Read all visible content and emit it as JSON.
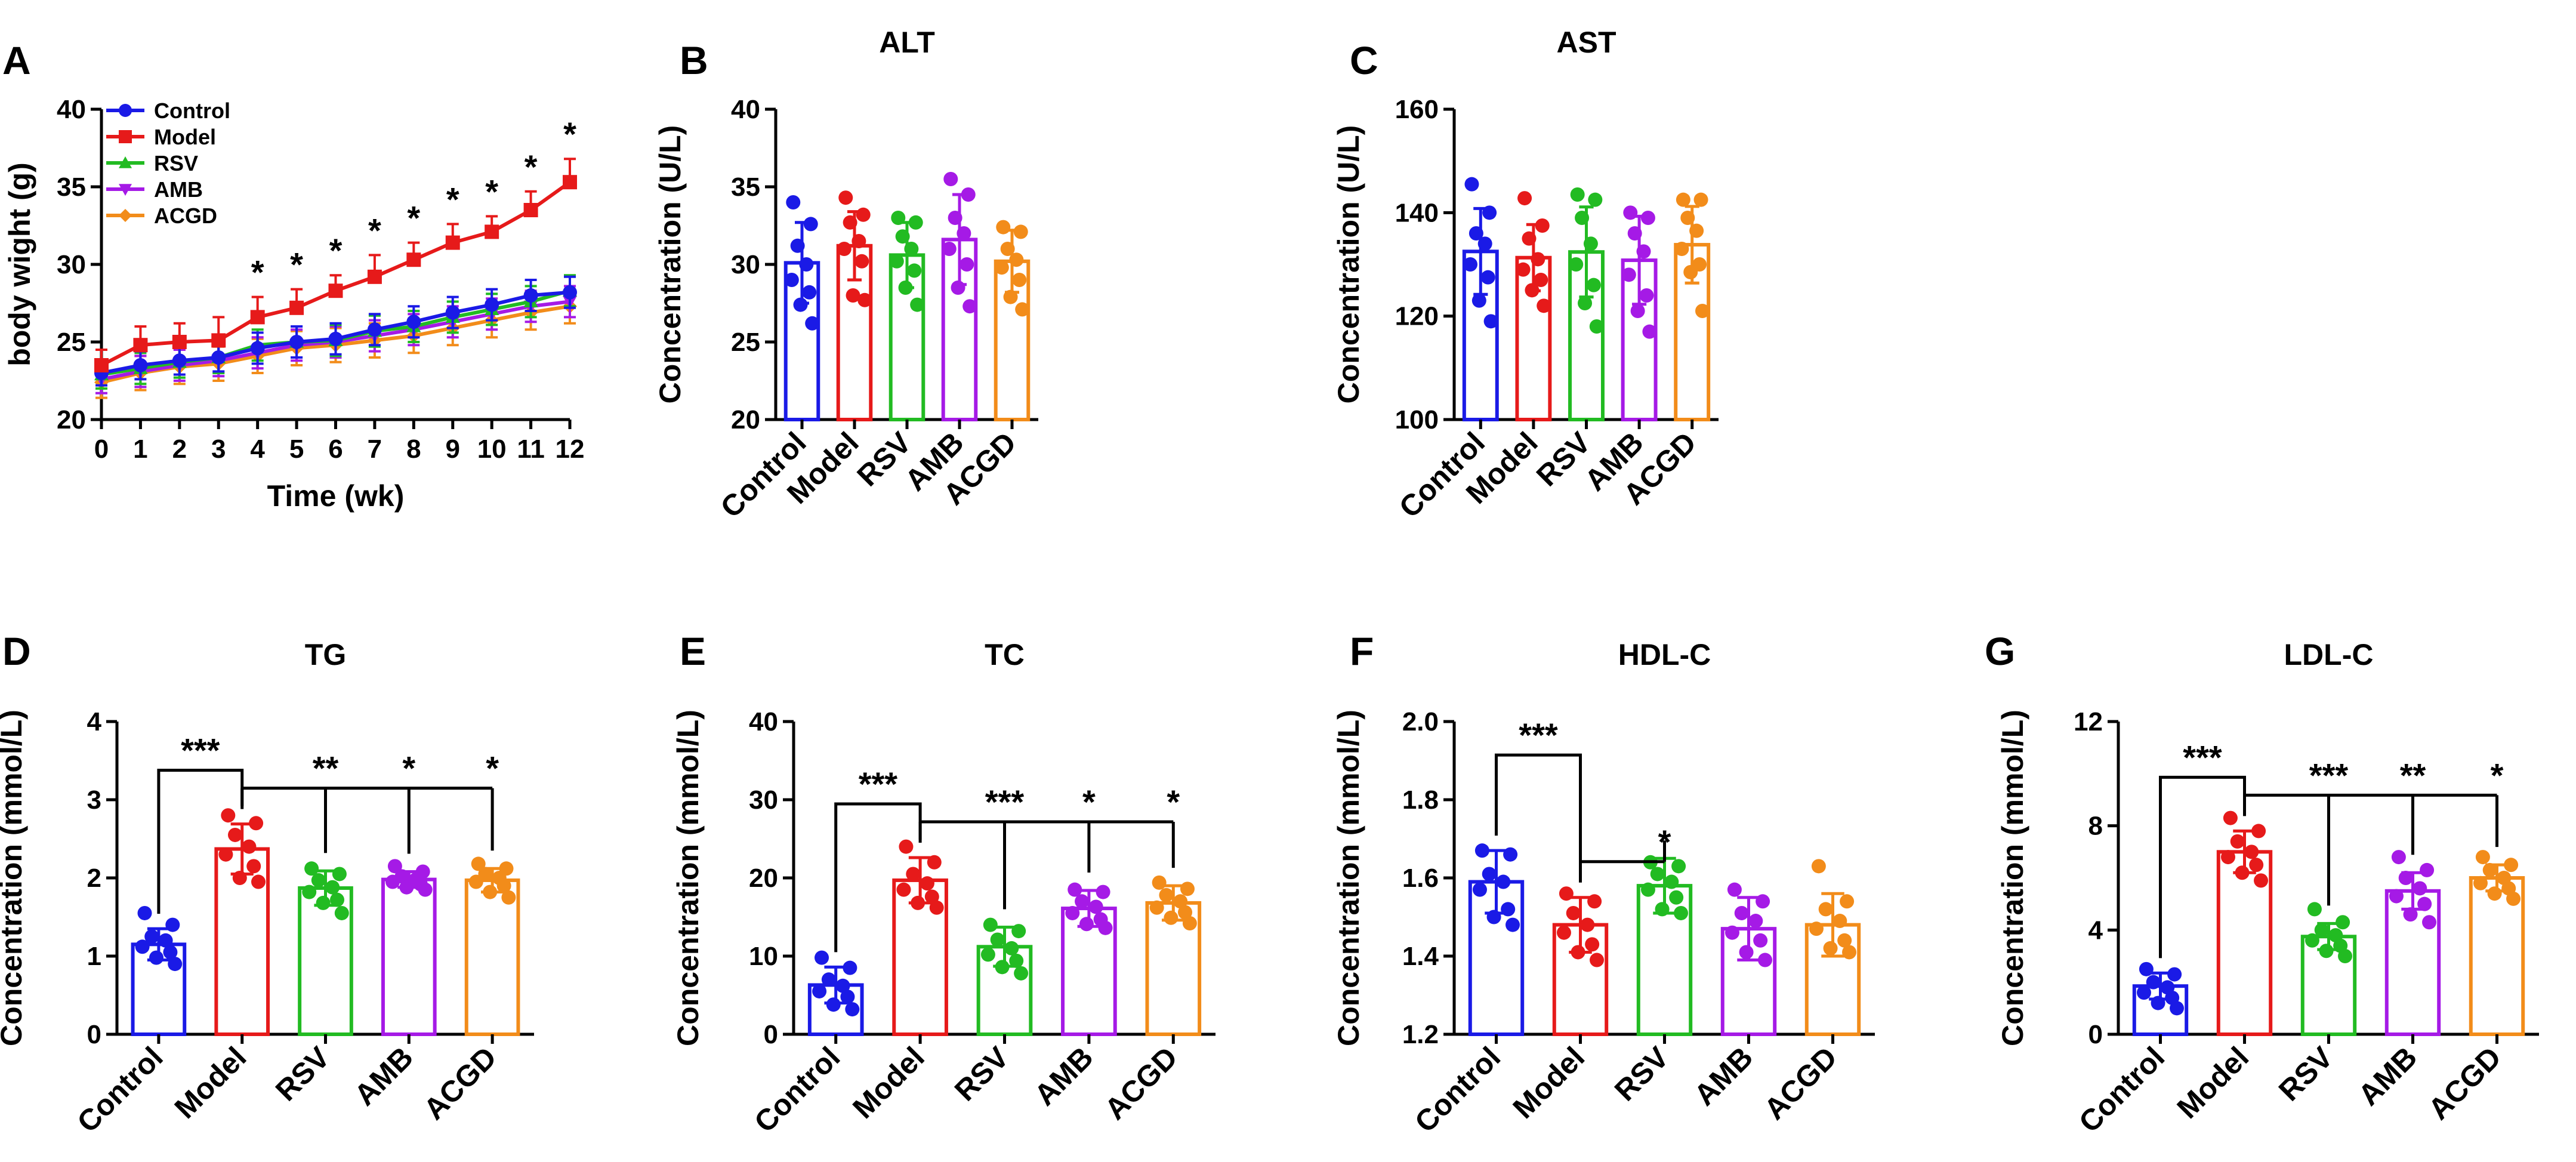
{
  "palette": {
    "Control": "#1a1ae6",
    "Model": "#e61a1a",
    "RSV": "#22bb22",
    "AMB": "#a51ae6",
    "ACGD": "#f28c1a"
  },
  "chart_data": [
    {
      "panel": "A",
      "type": "line",
      "title": "",
      "xlabel": "Time (wk)",
      "ylabel": "body wight (g)",
      "x": [
        0,
        1,
        2,
        3,
        4,
        5,
        6,
        7,
        8,
        9,
        10,
        11,
        12
      ],
      "xlim": [
        0,
        12
      ],
      "ylim": [
        20,
        40
      ],
      "yticks": [
        20,
        25,
        30,
        35,
        40
      ],
      "legend_position": "top-left",
      "series": [
        {
          "name": "Control",
          "marker": "circle",
          "values": [
            23.0,
            23.5,
            23.8,
            24.0,
            24.6,
            25.0,
            25.2,
            25.8,
            26.3,
            26.9,
            27.4,
            28.0,
            28.2
          ],
          "errors": [
            0.8,
            0.9,
            0.9,
            0.9,
            1.0,
            1.0,
            1.0,
            1.0,
            1.0,
            1.0,
            1.0,
            1.0,
            1.0
          ]
        },
        {
          "name": "Model",
          "marker": "square",
          "values": [
            23.5,
            24.8,
            25.0,
            25.1,
            26.6,
            27.2,
            28.3,
            29.2,
            30.3,
            31.4,
            32.1,
            33.5,
            35.3
          ],
          "errors": [
            1.0,
            1.2,
            1.2,
            1.5,
            1.3,
            1.2,
            1.0,
            1.4,
            1.1,
            1.2,
            1.0,
            1.2,
            1.5
          ]
        },
        {
          "name": "RSV",
          "marker": "triangle-up",
          "values": [
            22.9,
            23.3,
            23.7,
            24.0,
            24.8,
            25.0,
            25.1,
            25.7,
            26.0,
            26.6,
            27.1,
            27.6,
            28.3
          ],
          "errors": [
            0.9,
            1.0,
            1.0,
            1.0,
            1.0,
            1.0,
            1.0,
            1.0,
            1.0,
            1.0,
            1.0,
            1.0,
            1.0
          ]
        },
        {
          "name": "AMB",
          "marker": "triangle-down",
          "values": [
            22.6,
            23.1,
            23.5,
            23.8,
            24.3,
            24.8,
            25.0,
            25.4,
            25.8,
            26.3,
            26.8,
            27.3,
            27.6
          ],
          "errors": [
            0.9,
            1.0,
            1.0,
            1.0,
            1.0,
            1.0,
            1.0,
            1.0,
            1.0,
            1.0,
            1.0,
            1.0,
            1.0
          ]
        },
        {
          "name": "ACGD",
          "marker": "diamond",
          "values": [
            22.4,
            23.0,
            23.4,
            23.6,
            24.1,
            24.6,
            24.8,
            25.1,
            25.4,
            25.9,
            26.4,
            26.9,
            27.3
          ],
          "errors": [
            1.0,
            1.1,
            1.1,
            1.1,
            1.1,
            1.1,
            1.1,
            1.1,
            1.1,
            1.1,
            1.1,
            1.1,
            1.1
          ]
        }
      ],
      "significance": [
        {
          "x": 4,
          "label": "*"
        },
        {
          "x": 5,
          "label": "*"
        },
        {
          "x": 6,
          "label": "*"
        },
        {
          "x": 7,
          "label": "*"
        },
        {
          "x": 8,
          "label": "*"
        },
        {
          "x": 9,
          "label": "*"
        },
        {
          "x": 10,
          "label": "*"
        },
        {
          "x": 11,
          "label": "*"
        },
        {
          "x": 12,
          "label": "*"
        }
      ]
    },
    {
      "panel": "B",
      "type": "bar",
      "title": "ALT",
      "xlabel": "",
      "ylabel": "Concentration (U/L)",
      "ylim": [
        20,
        40
      ],
      "yticks": [
        20,
        25,
        30,
        35,
        40
      ],
      "categories": [
        "Control",
        "Model",
        "RSV",
        "AMB",
        "ACGD"
      ],
      "values": [
        30.1,
        31.2,
        30.6,
        31.6,
        30.2
      ],
      "errors": [
        2.6,
        2.2,
        2.1,
        2.9,
        2.0
      ],
      "points": [
        [
          34.0,
          32.6,
          31.2,
          30.0,
          29.0,
          28.2,
          27.4,
          26.2
        ],
        [
          34.3,
          33.2,
          32.7,
          31.5,
          31.0,
          30.2,
          28.0,
          27.7
        ],
        [
          33.0,
          32.7,
          31.8,
          31.0,
          30.2,
          29.6,
          28.5,
          27.4
        ],
        [
          35.5,
          34.5,
          33.0,
          32.0,
          31.0,
          30.0,
          28.5,
          27.3
        ],
        [
          32.4,
          32.1,
          31.0,
          30.3,
          29.8,
          29.0,
          27.9,
          27.1
        ]
      ],
      "significance": []
    },
    {
      "panel": "C",
      "type": "bar",
      "title": "AST",
      "xlabel": "",
      "ylabel": "Concentration (U/L)",
      "ylim": [
        100,
        160
      ],
      "yticks": [
        100,
        120,
        140,
        160
      ],
      "categories": [
        "Control",
        "Model",
        "RSV",
        "AMB",
        "ACGD"
      ],
      "values": [
        132.5,
        131.3,
        132.4,
        130.8,
        133.8
      ],
      "errors": [
        8.3,
        6.4,
        8.7,
        8.5,
        7.4
      ],
      "points": [
        [
          145.5,
          140.0,
          136.0,
          134.0,
          130.0,
          127.5,
          123.0,
          119.0
        ],
        [
          142.8,
          137.5,
          135.0,
          131.0,
          129.0,
          127.0,
          125.0,
          122.0
        ],
        [
          143.5,
          142.5,
          139.0,
          134.0,
          130.0,
          126.0,
          122.5,
          118.0
        ],
        [
          140.0,
          139.0,
          136.0,
          132.5,
          128.0,
          124.0,
          121.0,
          117.0
        ],
        [
          142.5,
          142.5,
          139.0,
          136.5,
          133.0,
          130.0,
          128.5,
          121.0
        ]
      ],
      "significance": []
    },
    {
      "panel": "D",
      "type": "bar",
      "title": "TG",
      "xlabel": "",
      "ylabel": "Concentration (mmol/L)",
      "ylim": [
        0,
        4
      ],
      "yticks": [
        0,
        1,
        2,
        3,
        4
      ],
      "categories": [
        "Control",
        "Model",
        "RSV",
        "AMB",
        "ACGD"
      ],
      "values": [
        1.15,
        2.37,
        1.87,
        1.98,
        1.97
      ],
      "errors": [
        0.2,
        0.32,
        0.22,
        0.1,
        0.15
      ],
      "points": [
        [
          1.55,
          1.4,
          1.25,
          1.2,
          1.12,
          1.05,
          0.98,
          0.9
        ],
        [
          2.8,
          2.7,
          2.55,
          2.4,
          2.3,
          2.15,
          2.0,
          1.95
        ],
        [
          2.12,
          2.05,
          1.97,
          1.88,
          1.82,
          1.72,
          1.68,
          1.55
        ],
        [
          2.15,
          2.08,
          2.02,
          1.98,
          1.95,
          1.92,
          1.88,
          1.85
        ],
        [
          2.18,
          2.12,
          2.05,
          2.0,
          1.95,
          1.9,
          1.82,
          1.75
        ]
      ],
      "significance": [
        {
          "type": "bracket",
          "from": 0,
          "to": 1,
          "label": "***"
        },
        {
          "type": "comb",
          "anchor": 1,
          "targets": [
            2,
            3,
            4
          ],
          "labels": [
            "**",
            "*",
            "*"
          ]
        }
      ]
    },
    {
      "panel": "E",
      "type": "bar",
      "title": "TC",
      "xlabel": "",
      "ylabel": "Concentration (mmol/L)",
      "ylim": [
        0,
        40
      ],
      "yticks": [
        0,
        10,
        20,
        30,
        40
      ],
      "categories": [
        "Control",
        "Model",
        "RSV",
        "AMB",
        "ACGD"
      ],
      "values": [
        6.3,
        19.7,
        11.2,
        16.1,
        16.8
      ],
      "errors": [
        2.3,
        2.9,
        2.5,
        2.3,
        2.2
      ],
      "points": [
        [
          9.8,
          8.5,
          7.0,
          6.2,
          5.5,
          4.8,
          3.8,
          3.2
        ],
        [
          24.0,
          22.0,
          20.5,
          19.3,
          18.5,
          17.6,
          16.8,
          16.2
        ],
        [
          14.0,
          13.2,
          12.1,
          11.0,
          10.2,
          9.4,
          8.6,
          7.8
        ],
        [
          18.5,
          18.2,
          17.0,
          16.3,
          15.5,
          14.7,
          14.1,
          13.6
        ],
        [
          19.4,
          18.6,
          17.8,
          17.0,
          16.2,
          15.6,
          14.9,
          14.2
        ]
      ],
      "significance": [
        {
          "type": "bracket",
          "from": 0,
          "to": 1,
          "label": "***"
        },
        {
          "type": "comb",
          "anchor": 1,
          "targets": [
            2,
            3,
            4
          ],
          "labels": [
            "***",
            "*",
            "*"
          ]
        }
      ]
    },
    {
      "panel": "F",
      "type": "bar",
      "title": "HDL-C",
      "xlabel": "",
      "ylabel": "Concentration (mmol/L)",
      "ylim": [
        1.2,
        2.0
      ],
      "yticks": [
        1.2,
        1.4,
        1.6,
        1.8,
        2.0
      ],
      "categories": [
        "Control",
        "Model",
        "RSV",
        "AMB",
        "ACGD"
      ],
      "values": [
        1.59,
        1.48,
        1.58,
        1.47,
        1.48
      ],
      "errors": [
        0.08,
        0.07,
        0.07,
        0.08,
        0.08
      ],
      "points": [
        [
          1.67,
          1.66,
          1.61,
          1.59,
          1.57,
          1.52,
          1.5,
          1.48
        ],
        [
          1.56,
          1.54,
          1.51,
          1.48,
          1.46,
          1.43,
          1.41,
          1.39
        ],
        [
          1.64,
          1.63,
          1.61,
          1.59,
          1.57,
          1.55,
          1.52,
          1.51
        ],
        [
          1.57,
          1.54,
          1.51,
          1.49,
          1.46,
          1.44,
          1.41,
          1.39
        ],
        [
          1.63,
          1.54,
          1.52,
          1.49,
          1.47,
          1.44,
          1.42,
          1.41
        ]
      ],
      "significance": [
        {
          "type": "bracket",
          "from": 0,
          "to": 1,
          "label": "***"
        },
        {
          "type": "comb",
          "anchor": 1,
          "targets": [
            2
          ],
          "labels": [
            "*"
          ]
        }
      ]
    },
    {
      "panel": "G",
      "type": "bar",
      "title": "LDL-C",
      "xlabel": "",
      "ylabel": "Concentration (mmol/L)",
      "ylim": [
        0,
        12
      ],
      "yticks": [
        0,
        4,
        8,
        12
      ],
      "categories": [
        "Control",
        "Model",
        "RSV",
        "AMB",
        "ACGD"
      ],
      "values": [
        1.85,
        7.0,
        3.75,
        5.5,
        6.0
      ],
      "errors": [
        0.5,
        0.8,
        0.5,
        0.7,
        0.5
      ],
      "points": [
        [
          2.5,
          2.3,
          2.0,
          1.8,
          1.6,
          1.4,
          1.2,
          1.0
        ],
        [
          8.3,
          7.8,
          7.4,
          7.0,
          6.8,
          6.5,
          6.2,
          5.9
        ],
        [
          4.8,
          4.3,
          4.0,
          3.8,
          3.6,
          3.4,
          3.2,
          3.0
        ],
        [
          6.8,
          6.3,
          6.0,
          5.6,
          5.3,
          5.0,
          4.6,
          4.3
        ],
        [
          6.8,
          6.5,
          6.3,
          6.0,
          5.8,
          5.6,
          5.4,
          5.2
        ]
      ],
      "significance": [
        {
          "type": "bracket",
          "from": 0,
          "to": 1,
          "label": "***"
        },
        {
          "type": "comb",
          "anchor": 1,
          "targets": [
            2,
            3,
            4
          ],
          "labels": [
            "***",
            "**",
            "*"
          ]
        }
      ]
    }
  ]
}
